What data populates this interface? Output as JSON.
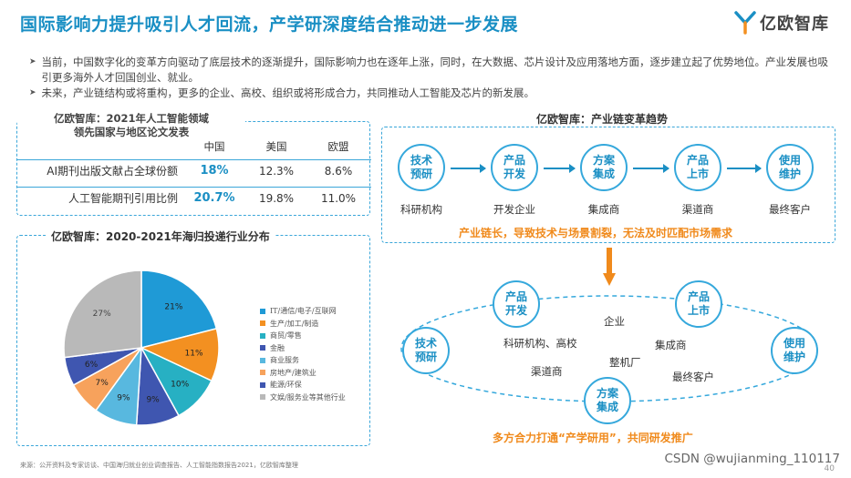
{
  "header": {
    "title": "国际影响力提升吸引人才回流，产学研深度结合推动进一步发展",
    "logo_text": "亿欧智库"
  },
  "bullets": [
    "当前，中国数字化的变革方向驱动了底层技术的逐渐提升，国际影响力也在逐年上涨，同时，在大数据、芯片设计及应用落地方面，逐步建立起了优势地位。产业发展也吸引更多海外人才回国创业、就业。",
    "未来，产业链结构或将重构，更多的企业、高校、组织或将形成合力，共同推动人工智能及芯片的新发展。"
  ],
  "paper_table": {
    "title_line1": "亿欧智库：2021年人工智能领域",
    "title_line2": "领先国家与地区论文发表",
    "columns": [
      "中国",
      "美国",
      "欧盟"
    ],
    "rows": [
      {
        "label": "AI期刊出版文献占全球份额",
        "values": [
          "18%",
          "12.3%",
          "8.6%"
        ]
      },
      {
        "label": "人工智能期刊引用比例",
        "values": [
          "20.7%",
          "19.8%",
          "11.0%"
        ]
      }
    ]
  },
  "pie": {
    "title": "亿欧智库：2020-2021年海归投递行业分布",
    "slices": [
      {
        "label": "IT/通信/电子/互联网",
        "value": 21,
        "display": "21%",
        "color": "#1f9ad6"
      },
      {
        "label": "生产/加工/制造",
        "value": 11,
        "display": "11%",
        "color": "#f39021"
      },
      {
        "label": "商贸/零售",
        "value": 10,
        "display": "10%",
        "color": "#27b0c3"
      },
      {
        "label": "金融",
        "value": 9,
        "display": "9%",
        "color": "#3f56b0"
      },
      {
        "label": "商业服务",
        "value": 9,
        "display": "9%",
        "color": "#58b8df"
      },
      {
        "label": "房地产/建筑业",
        "value": 7,
        "display": "7%",
        "color": "#f7a25c"
      },
      {
        "label": "能源/环保",
        "value": 6,
        "display": "6%",
        "color": "#3f56b0"
      },
      {
        "label": "文娱/服务业等其他行业",
        "value": 27,
        "display": "27%",
        "color": "#b9b9b9"
      }
    ]
  },
  "chain": {
    "title": "亿欧智库：产业链变革趋势",
    "nodes": [
      {
        "label": "技术\n预研",
        "sub": "科研机构"
      },
      {
        "label": "产品\n开发",
        "sub": "开发企业"
      },
      {
        "label": "方案\n集成",
        "sub": "集成商"
      },
      {
        "label": "产品\n上市",
        "sub": "渠道商"
      },
      {
        "label": "使用\n维护",
        "sub": "最终客户"
      }
    ],
    "problem": "产业链长，导致技术与场景割裂，无法及时匹配市场需求"
  },
  "ecosystem": {
    "nodes": [
      {
        "label": "产品\n开发"
      },
      {
        "label": "产品\n上市"
      },
      {
        "label": "技术\n预研"
      },
      {
        "label": "使用\n维护"
      },
      {
        "label": "方案\n集成"
      }
    ],
    "center_labels": [
      "企业",
      "科研机构、高校",
      "集成商",
      "整机厂",
      "渠道商",
      "最终客户"
    ],
    "conclusion": "多方合力打通“产学研用”，共同研发推广"
  },
  "footer": {
    "source": "来源：公开资料及专家访谈、中国海归就业创业调查报告、人工智能指数报告2021，亿欧智库整理",
    "watermark": "CSDN @wujianming_110117",
    "page": "40"
  }
}
